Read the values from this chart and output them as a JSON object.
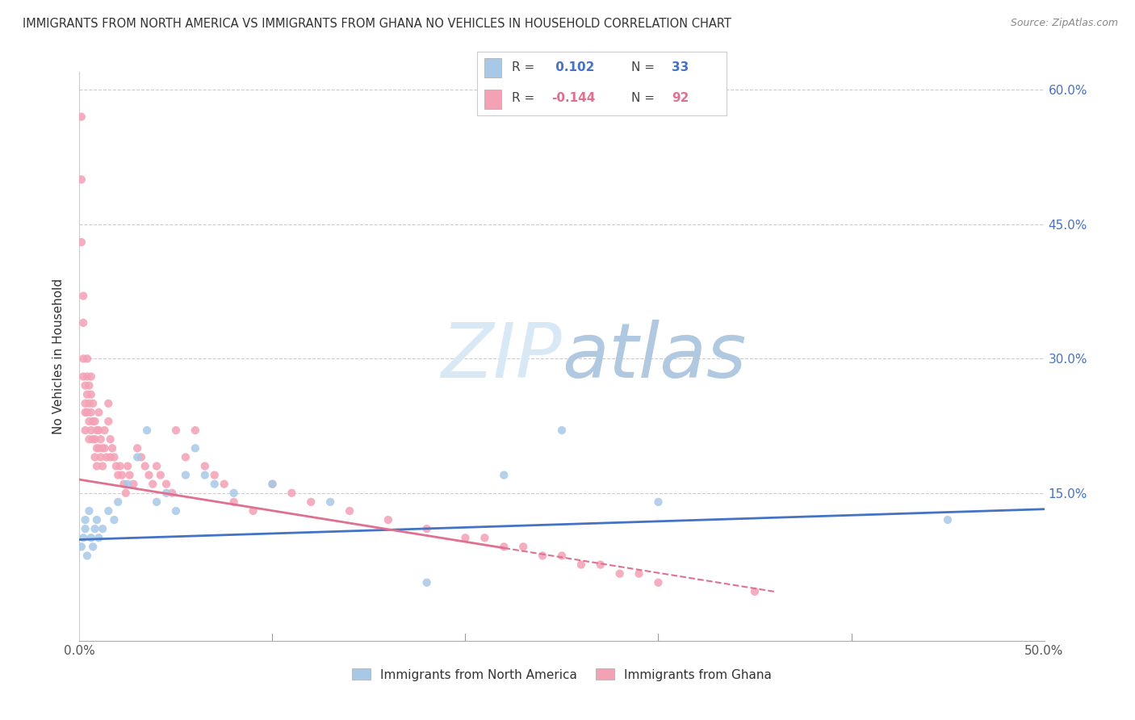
{
  "title": "IMMIGRANTS FROM NORTH AMERICA VS IMMIGRANTS FROM GHANA NO VEHICLES IN HOUSEHOLD CORRELATION CHART",
  "source": "Source: ZipAtlas.com",
  "ylabel": "No Vehicles in Household",
  "xlim": [
    0.0,
    0.5
  ],
  "ylim": [
    -0.015,
    0.62
  ],
  "blue_color": "#a8c8e8",
  "pink_color": "#f4a0b5",
  "blue_line_color": "#4472c4",
  "pink_line_color": "#e07090",
  "background_color": "#ffffff",
  "grid_color": "#cccccc",
  "right_tick_color": "#4472c4",
  "legend_blue_r_label": "R = ",
  "legend_blue_r_val": " 0.102",
  "legend_blue_n_label": "N = ",
  "legend_blue_n_val": "33",
  "legend_pink_r_label": "R = ",
  "legend_pink_r_val": "-0.144",
  "legend_pink_n_label": "N = ",
  "legend_pink_n_val": "92",
  "na_label": "Immigrants from North America",
  "gh_label": "Immigrants from Ghana",
  "north_america_x": [
    0.001,
    0.002,
    0.003,
    0.003,
    0.004,
    0.005,
    0.006,
    0.007,
    0.008,
    0.009,
    0.01,
    0.012,
    0.015,
    0.018,
    0.02,
    0.025,
    0.03,
    0.035,
    0.04,
    0.045,
    0.05,
    0.055,
    0.06,
    0.065,
    0.07,
    0.08,
    0.1,
    0.13,
    0.18,
    0.22,
    0.25,
    0.3,
    0.45
  ],
  "north_america_y": [
    0.09,
    0.1,
    0.11,
    0.12,
    0.08,
    0.13,
    0.1,
    0.09,
    0.11,
    0.12,
    0.1,
    0.11,
    0.13,
    0.12,
    0.14,
    0.16,
    0.19,
    0.22,
    0.14,
    0.15,
    0.13,
    0.17,
    0.2,
    0.17,
    0.16,
    0.15,
    0.16,
    0.14,
    0.05,
    0.17,
    0.22,
    0.14,
    0.12
  ],
  "ghana_x": [
    0.001,
    0.001,
    0.001,
    0.002,
    0.002,
    0.002,
    0.002,
    0.003,
    0.003,
    0.003,
    0.003,
    0.004,
    0.004,
    0.004,
    0.004,
    0.005,
    0.005,
    0.005,
    0.005,
    0.006,
    0.006,
    0.006,
    0.006,
    0.007,
    0.007,
    0.007,
    0.008,
    0.008,
    0.008,
    0.009,
    0.009,
    0.009,
    0.01,
    0.01,
    0.01,
    0.011,
    0.011,
    0.012,
    0.012,
    0.013,
    0.013,
    0.014,
    0.015,
    0.015,
    0.016,
    0.016,
    0.017,
    0.018,
    0.019,
    0.02,
    0.021,
    0.022,
    0.023,
    0.024,
    0.025,
    0.026,
    0.028,
    0.03,
    0.032,
    0.034,
    0.036,
    0.038,
    0.04,
    0.042,
    0.045,
    0.048,
    0.05,
    0.055,
    0.06,
    0.065,
    0.07,
    0.075,
    0.08,
    0.09,
    0.1,
    0.11,
    0.12,
    0.14,
    0.16,
    0.18,
    0.2,
    0.21,
    0.22,
    0.23,
    0.24,
    0.25,
    0.26,
    0.27,
    0.28,
    0.29,
    0.3,
    0.35
  ],
  "ghana_y": [
    0.57,
    0.5,
    0.43,
    0.37,
    0.34,
    0.3,
    0.28,
    0.27,
    0.25,
    0.24,
    0.22,
    0.3,
    0.28,
    0.26,
    0.24,
    0.27,
    0.25,
    0.23,
    0.21,
    0.28,
    0.26,
    0.24,
    0.22,
    0.25,
    0.23,
    0.21,
    0.23,
    0.21,
    0.19,
    0.22,
    0.2,
    0.18,
    0.24,
    0.22,
    0.2,
    0.21,
    0.19,
    0.2,
    0.18,
    0.22,
    0.2,
    0.19,
    0.25,
    0.23,
    0.21,
    0.19,
    0.2,
    0.19,
    0.18,
    0.17,
    0.18,
    0.17,
    0.16,
    0.15,
    0.18,
    0.17,
    0.16,
    0.2,
    0.19,
    0.18,
    0.17,
    0.16,
    0.18,
    0.17,
    0.16,
    0.15,
    0.22,
    0.19,
    0.22,
    0.18,
    0.17,
    0.16,
    0.14,
    0.13,
    0.16,
    0.15,
    0.14,
    0.13,
    0.12,
    0.11,
    0.1,
    0.1,
    0.09,
    0.09,
    0.08,
    0.08,
    0.07,
    0.07,
    0.06,
    0.06,
    0.05,
    0.04
  ],
  "blue_trend_x0": 0.0,
  "blue_trend_y0": 0.098,
  "blue_trend_x1": 0.5,
  "blue_trend_y1": 0.132,
  "pink_trend_x0": 0.0,
  "pink_trend_y0": 0.165,
  "pink_trend_x1_solid": 0.22,
  "pink_trend_x1_dashed": 0.36,
  "pink_trend_y1": 0.04
}
